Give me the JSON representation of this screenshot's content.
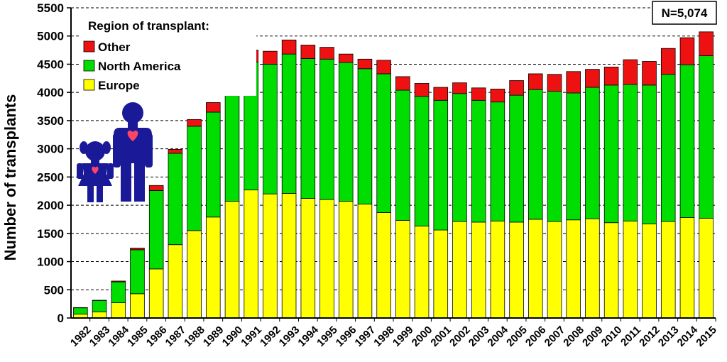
{
  "chart_data": {
    "type": "bar",
    "stacked": true,
    "xlabel": "",
    "ylabel": "Number of transplants",
    "ylim": [
      0,
      5500
    ],
    "yticks": [
      0,
      500,
      1000,
      1500,
      2000,
      2500,
      3000,
      3500,
      4000,
      4500,
      5000,
      5500
    ],
    "grid": "horizontal dashed",
    "annotation": "N=5,074",
    "legend": {
      "title": "Region of transplant:",
      "placement": "top-left"
    },
    "categories": [
      "1982",
      "1983",
      "1984",
      "1985",
      "1986",
      "1987",
      "1988",
      "1989",
      "1990",
      "1991",
      "1992",
      "1993",
      "1994",
      "1995",
      "1996",
      "1997",
      "1998",
      "1999",
      "2000",
      "2001",
      "2002",
      "2003",
      "2004",
      "2005",
      "2006",
      "2007",
      "2008",
      "2009",
      "2010",
      "2011",
      "2012",
      "2013",
      "2014",
      "2015"
    ],
    "series": [
      {
        "name": "Europe",
        "color": "#ffff00",
        "values": [
          70,
          110,
          270,
          430,
          870,
          1300,
          1550,
          1790,
          2070,
          2270,
          2200,
          2210,
          2120,
          2100,
          2070,
          2020,
          1870,
          1730,
          1630,
          1560,
          1710,
          1700,
          1720,
          1700,
          1750,
          1710,
          1740,
          1760,
          1690,
          1720,
          1670,
          1710,
          1780,
          1770
        ]
      },
      {
        "name": "North America",
        "color": "#00dd00",
        "values": [
          110,
          200,
          370,
          780,
          1390,
          1620,
          1850,
          1860,
          2270,
          2270,
          2300,
          2470,
          2480,
          2490,
          2460,
          2400,
          2460,
          2310,
          2300,
          2300,
          2270,
          2160,
          2110,
          2250,
          2300,
          2310,
          2250,
          2330,
          2440,
          2420,
          2460,
          2610,
          2710,
          2880
        ]
      },
      {
        "name": "Other",
        "color": "#ee1111",
        "values": [
          5,
          5,
          15,
          30,
          90,
          70,
          120,
          170,
          180,
          210,
          230,
          250,
          240,
          210,
          150,
          170,
          240,
          240,
          230,
          230,
          190,
          220,
          230,
          260,
          280,
          300,
          380,
          320,
          320,
          440,
          420,
          460,
          480,
          424
        ]
      }
    ]
  },
  "legend_items": [
    "Other",
    "North America",
    "Europe"
  ]
}
